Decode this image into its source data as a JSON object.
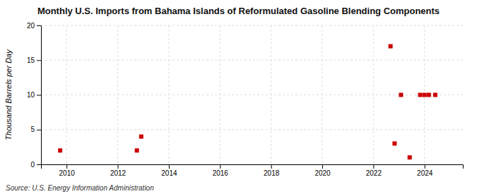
{
  "chart_data": {
    "type": "scatter",
    "title": "Monthly U.S. Imports from Bahama Islands of Reformulated Gasoline Blending Components",
    "ylabel": "Thousand Barrels per Day",
    "annotations": [
      "Source: U.S. Energy Information Administration"
    ],
    "x": [
      2009.75,
      2012.75,
      2012.92,
      2022.67,
      2022.83,
      2023.08,
      2023.42,
      2023.83,
      2024.0,
      2024.17,
      2024.42
    ],
    "values": [
      2,
      2,
      4,
      17,
      3,
      10,
      1,
      10,
      10,
      10,
      10
    ],
    "color": "#cc0000",
    "marker": "square",
    "xlim": [
      2009.0,
      2025.5
    ],
    "xticks": [
      2010,
      2012,
      2014,
      2016,
      2018,
      2020,
      2022,
      2024
    ],
    "ylim": [
      0,
      20
    ],
    "yticks": [
      0,
      5,
      10,
      15,
      20
    ],
    "grid": true
  }
}
